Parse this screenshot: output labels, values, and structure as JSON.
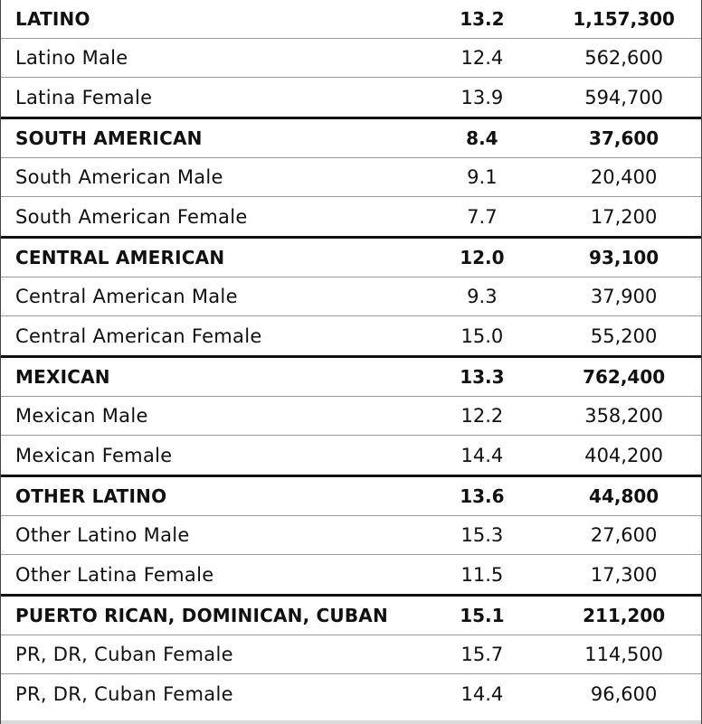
{
  "groups": [
    {
      "header": {
        "label": "LATINO",
        "pct": "13.2",
        "count": "1,157,300"
      },
      "rows": [
        {
          "label": "Latino Male",
          "pct": "12.4",
          "count": "562,600"
        },
        {
          "label": "Latina Female",
          "pct": "13.9",
          "count": "594,700"
        }
      ]
    },
    {
      "header": {
        "label": "SOUTH AMERICAN",
        "pct": "8.4",
        "count": "37,600"
      },
      "rows": [
        {
          "label": "South American Male",
          "pct": "9.1",
          "count": "20,400"
        },
        {
          "label": "South American Female",
          "pct": "7.7",
          "count": "17,200"
        }
      ]
    },
    {
      "header": {
        "label": "CENTRAL AMERICAN",
        "pct": "12.0",
        "count": "93,100"
      },
      "rows": [
        {
          "label": "Central American Male",
          "pct": "9.3",
          "count": "37,900"
        },
        {
          "label": "Central American Female",
          "pct": "15.0",
          "count": "55,200"
        }
      ]
    },
    {
      "header": {
        "label": "MEXICAN",
        "pct": "13.3",
        "count": "762,400"
      },
      "rows": [
        {
          "label": "Mexican Male",
          "pct": "12.2",
          "count": "358,200"
        },
        {
          "label": "Mexican Female",
          "pct": "14.4",
          "count": "404,200"
        }
      ]
    },
    {
      "header": {
        "label": "OTHER LATINO",
        "pct": "13.6",
        "count": "44,800"
      },
      "rows": [
        {
          "label": "Other Latino Male",
          "pct": "15.3",
          "count": "27,600"
        },
        {
          "label": "Other Latina Female",
          "pct": "11.5",
          "count": "17,300"
        }
      ]
    },
    {
      "header": {
        "label": "PUERTO RICAN, DOMINICAN, CUBAN",
        "pct": "15.1",
        "count": "211,200"
      },
      "rows": [
        {
          "label": "PR, DR, Cuban Female",
          "pct": "15.7",
          "count": "114,500"
        },
        {
          "label": "PR, DR, Cuban Female",
          "pct": "14.4",
          "count": "96,600"
        }
      ]
    }
  ]
}
